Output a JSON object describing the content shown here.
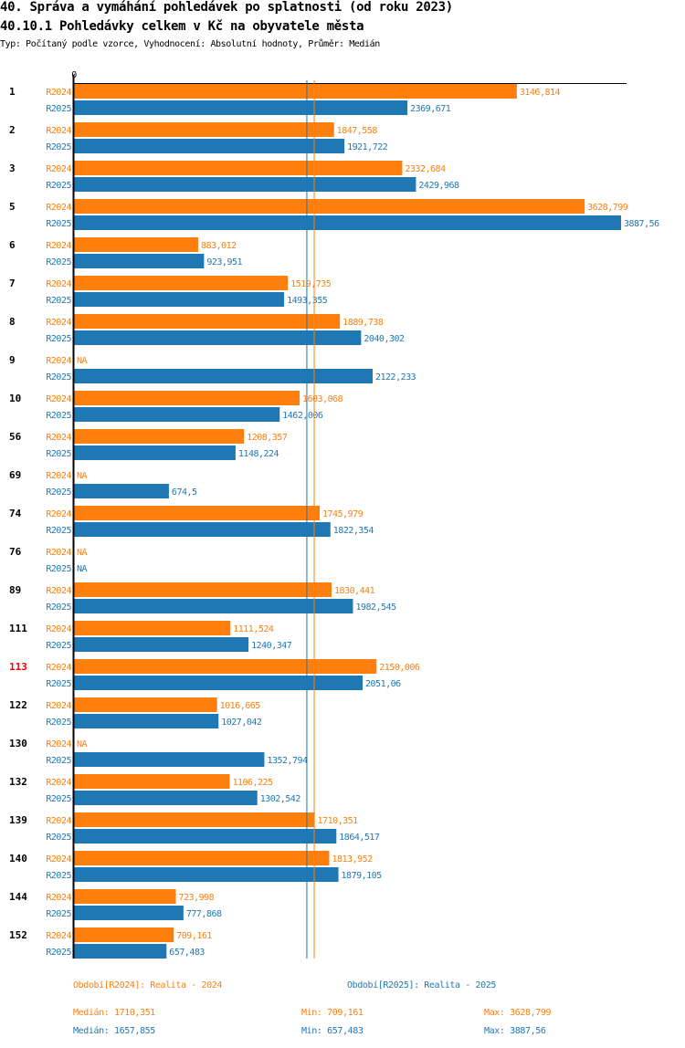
{
  "header": {
    "title": "40. Správa a vymáhání pohledávek po splatnosti (od roku 2023)",
    "subtitle": "40.10.1 Pohledávky celkem v Kč na obyvatele města",
    "info": "Typ: Počítaný podle vzorce, Vyhodnocení: Absolutní hodnoty, Průměr: Medián"
  },
  "colors": {
    "R2024": "#ff7f0e",
    "R2025": "#1f77b4",
    "highlight": "#ff0000",
    "axis": "#000000"
  },
  "chart_data": {
    "type": "bar",
    "orientation": "horizontal",
    "title": "40.10.1 Pohledávky celkem v Kč na obyvatele města",
    "xlabel": "",
    "ylabel": "",
    "xlim": [
      0,
      3887.56
    ],
    "x_ticks": [
      "0"
    ],
    "grid": false,
    "categories": [
      "1",
      "2",
      "3",
      "5",
      "6",
      "7",
      "8",
      "9",
      "10",
      "56",
      "69",
      "74",
      "76",
      "89",
      "111",
      "113",
      "122",
      "130",
      "132",
      "139",
      "140",
      "144",
      "152"
    ],
    "highlighted_category": "113",
    "series": [
      {
        "name": "R2024",
        "legend": "Období[R2024]: Realita - 2024",
        "values": [
          3146.814,
          1847.558,
          2332.684,
          3628.799,
          883.012,
          1519.735,
          1889.738,
          null,
          1603.068,
          1208.357,
          null,
          1745.979,
          null,
          1830.441,
          1111.524,
          2150.006,
          1016.665,
          null,
          1106.225,
          1710.351,
          1813.952,
          723.998,
          709.161
        ],
        "labels": [
          "3146,814",
          "1847,558",
          "2332,684",
          "3628,799",
          "883,012",
          "1519,735",
          "1889,738",
          "NA",
          "1603,068",
          "1208,357",
          "NA",
          "1745,979",
          "NA",
          "1830,441",
          "1111,524",
          "2150,006",
          "1016,665",
          "NA",
          "1106,225",
          "1710,351",
          "1813,952",
          "723,998",
          "709,161"
        ],
        "median": 1710.351,
        "median_label": "Medián: 1710,351",
        "min_label": "Min: 709,161",
        "max_label": "Max: 3628,799"
      },
      {
        "name": "R2025",
        "legend": "Období[R2025]: Realita - 2025",
        "values": [
          2369.671,
          1921.722,
          2429.968,
          3887.56,
          923.951,
          1493.355,
          2040.302,
          2122.233,
          1462.006,
          1148.224,
          674.5,
          1822.354,
          null,
          1982.545,
          1240.347,
          2051.06,
          1027.042,
          1352.794,
          1302.542,
          1864.517,
          1879.105,
          777.868,
          657.483
        ],
        "labels": [
          "2369,671",
          "1921,722",
          "2429,968",
          "3887,56",
          "923,951",
          "1493,355",
          "2040,302",
          "2122,233",
          "1462,006",
          "1148,224",
          "674,5",
          "1822,354",
          "NA",
          "1982,545",
          "1240,347",
          "2051,06",
          "1027,042",
          "1352,794",
          "1302,542",
          "1864,517",
          "1879,105",
          "777,868",
          "657,483"
        ],
        "median": 1657.855,
        "median_label": "Medián: 1657,855",
        "min_label": "Min: 657,483",
        "max_label": "Max: 3887,56"
      }
    ]
  }
}
